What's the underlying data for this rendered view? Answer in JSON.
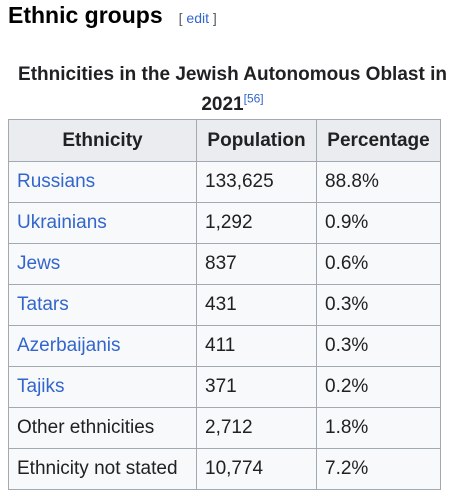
{
  "section": {
    "title": "Ethnic groups",
    "edit_open": "[",
    "edit_label": "edit",
    "edit_close": "]"
  },
  "table": {
    "caption": "Ethnicities in the Jewish Autonomous Oblast in 2021",
    "reference": "[56]",
    "headers": [
      "Ethnicity",
      "Population",
      "Percentage"
    ],
    "rows": [
      {
        "ethnicity": "Russians",
        "population": "133,625",
        "percentage": "88.8%",
        "is_link": true
      },
      {
        "ethnicity": "Ukrainians",
        "population": "1,292",
        "percentage": "0.9%",
        "is_link": true
      },
      {
        "ethnicity": "Jews",
        "population": "837",
        "percentage": "0.6%",
        "is_link": true
      },
      {
        "ethnicity": "Tatars",
        "population": "431",
        "percentage": "0.3%",
        "is_link": true
      },
      {
        "ethnicity": "Azerbaijanis",
        "population": "411",
        "percentage": "0.3%",
        "is_link": true
      },
      {
        "ethnicity": "Tajiks",
        "population": "371",
        "percentage": "0.2%",
        "is_link": true
      },
      {
        "ethnicity": "Other ethnicities",
        "population": "2,712",
        "percentage": "1.8%",
        "is_link": false
      },
      {
        "ethnicity": "Ethnicity not stated",
        "population": "10,774",
        "percentage": "7.2%",
        "is_link": false
      }
    ]
  },
  "colors": {
    "link": "#3366cc",
    "header_bg": "#eaecf0",
    "cell_bg": "#f8f9fa",
    "border": "#a2a9b1"
  }
}
